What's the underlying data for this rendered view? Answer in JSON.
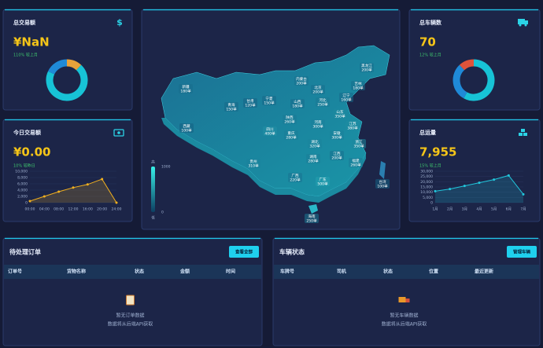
{
  "cards": [
    {
      "title": "总交易额",
      "icon": "$",
      "value": "¥NaN",
      "change": "110% 较上月",
      "chart": {
        "type": "donut",
        "values": [
          12,
          70,
          18
        ],
        "colors": [
          "#e8a23a",
          "#17c3d6",
          "#1f8ad8"
        ]
      }
    },
    {
      "title": "总车辆数",
      "value": "70",
      "change": "12% 较上月",
      "chart": {
        "type": "donut",
        "values": [
          58,
          30,
          12
        ],
        "colors": [
          "#17c3d6",
          "#1f8ad8",
          "#e0533a"
        ]
      }
    },
    {
      "title": "今日交易额",
      "value": "¥0.00",
      "change": "10% 较昨日",
      "chart": {
        "type": "line",
        "color": "#f2b01e",
        "categories": [
          "00:00",
          "04:00",
          "08:00",
          "12:00",
          "16:00",
          "20:00",
          "24:00"
        ],
        "values": [
          500,
          2000,
          3500,
          4800,
          5800,
          7500,
          0
        ],
        "ylim": [
          0,
          10000
        ],
        "yticks": [
          0,
          {
            "value": 2000,
            "label": "2,000"
          },
          {
            "value": 4000,
            "label": "4,000"
          },
          {
            "value": 6000,
            "label": "6,000"
          },
          {
            "value": 8000,
            "label": "8,000"
          },
          {
            "value": 10000,
            "label": "10,000"
          }
        ]
      }
    },
    {
      "title": "总运量",
      "value": "7,955",
      "change": "15% 较上月",
      "chart": {
        "type": "line",
        "color": "#21c7dc",
        "categories": [
          "1月",
          "2月",
          "3月",
          "4月",
          "5月",
          "6月",
          "7月"
        ],
        "values": [
          11000,
          13000,
          16000,
          19000,
          22000,
          26000,
          8000
        ],
        "ylim": [
          0,
          30000
        ],
        "yticks": [
          0,
          {
            "value": 5000,
            "label": "5,000"
          },
          {
            "value": 10000,
            "label": "10,000"
          },
          {
            "value": 15000,
            "label": "15,000"
          },
          {
            "value": 20000,
            "label": "20,000"
          },
          {
            "value": 25000,
            "label": "25,000"
          },
          {
            "value": 30000,
            "label": "30,000"
          }
        ]
      }
    }
  ],
  "map": {
    "type": "map",
    "regions": [
      "新疆",
      "西藏",
      "青海",
      "甘肃",
      "宁夏",
      "内蒙古",
      "黑龙江",
      "吉林",
      "辽宁",
      "北京",
      "河北",
      "山西",
      "陕西",
      "四川",
      "重庆",
      "河南",
      "山东",
      "江苏",
      "安徽",
      "湖北",
      "湖南",
      "江西",
      "浙江",
      "贵州",
      "广西",
      "广东",
      "福建",
      "海南",
      "台湾"
    ],
    "values": [
      180,
      100,
      150,
      120,
      150,
      200,
      200,
      180,
      160,
      200,
      250,
      180,
      260,
      400,
      280,
      300,
      350,
      380,
      300,
      320,
      280,
      200,
      350,
      310,
      220,
      500,
      260,
      250,
      100
    ],
    "value_labels": [
      "180单",
      "100单",
      "150单",
      "120单",
      "150单",
      "200单",
      "200单",
      "180单",
      "160单",
      "200单",
      "250单",
      "180单",
      "260单",
      "400单",
      "280单",
      "300单",
      "350单",
      "380单",
      "300单",
      "320单",
      "280单",
      "200单",
      "350单",
      "310单",
      "220单",
      "500单",
      "260单",
      "250单",
      "100单"
    ],
    "legend": {
      "high": "高",
      "low": "低",
      "range": [
        0,
        1000
      ]
    }
  },
  "panels": [
    {
      "title": "待处理订单",
      "button": "查看全部",
      "columns": [
        "订单号",
        "货物名称",
        "状态",
        "金额",
        "时间"
      ],
      "empty": "暂无订单数据",
      "note": "数据将从后端API获取"
    },
    {
      "title": "车辆状态",
      "button": "管理车辆",
      "columns": [
        "车牌号",
        "司机",
        "状态",
        "位置",
        "最近更新"
      ],
      "empty": "暂无车辆数据",
      "note": "数据将从后端API获取"
    }
  ]
}
